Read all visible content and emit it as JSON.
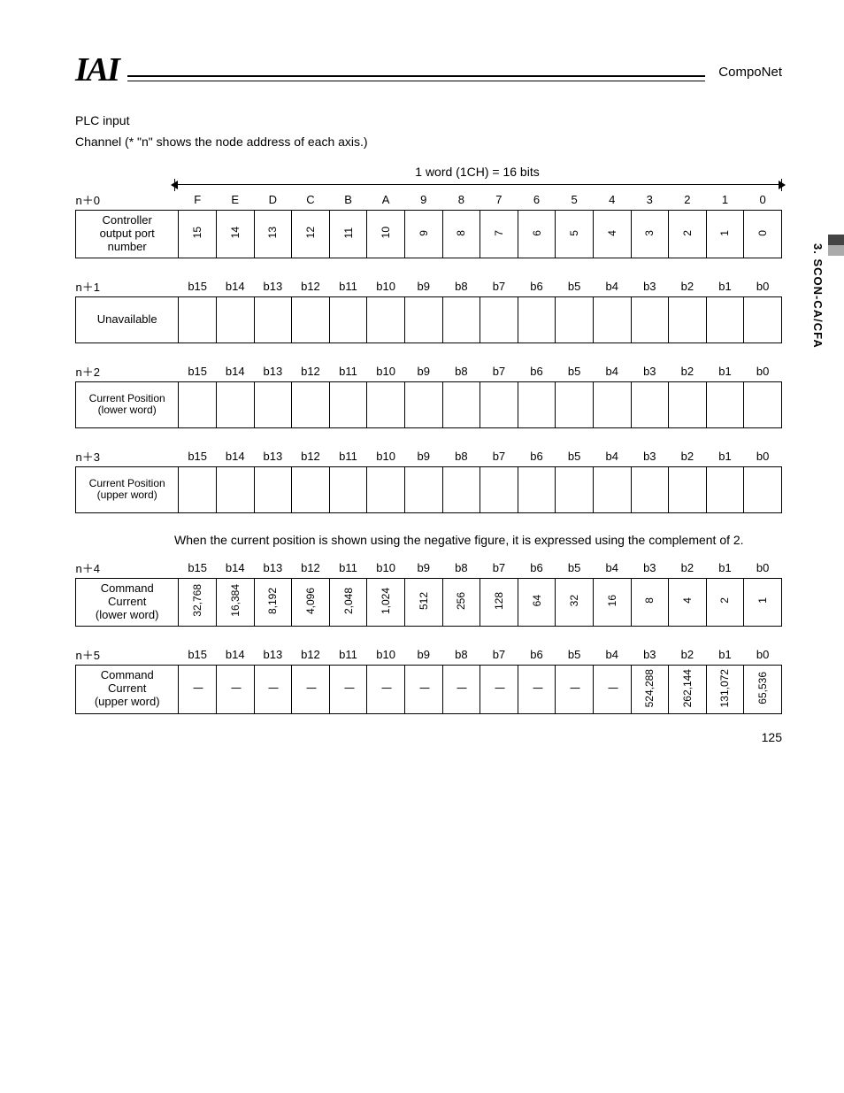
{
  "header": {
    "logo": "IAI",
    "right_title": "CompoNet",
    "side_label": "3. SCON-CA/CFA"
  },
  "intro": {
    "line1": "PLC input",
    "line2": "Channel (* \"n\" shows the node address of each axis.)"
  },
  "wordnote": "1 word (1CH) = 16 bits",
  "rows": [
    {
      "key": "n＋0",
      "name": "Controller\noutput port\nnumber",
      "headers": [
        "F",
        "E",
        "D",
        "C",
        "B",
        "A",
        "9",
        "8",
        "7",
        "6",
        "5",
        "4",
        "3",
        "2",
        "1",
        "0"
      ],
      "values": [
        "15",
        "14",
        "13",
        "12",
        "11",
        "10",
        "9",
        "8",
        "7",
        "6",
        "5",
        "4",
        "3",
        "2",
        "1",
        "0"
      ],
      "vertical": true
    },
    {
      "key": "n＋1",
      "name": "Unavailable",
      "headers": [
        "b15",
        "b14",
        "b13",
        "b12",
        "b11",
        "b10",
        "b9",
        "b8",
        "b7",
        "b6",
        "b5",
        "b4",
        "b3",
        "b2",
        "b1",
        "b0"
      ],
      "values": [
        "",
        "",
        "",
        "",
        "",
        "",
        "",
        "",
        "",
        "",
        "",
        "",
        "",
        "",
        "",
        ""
      ],
      "vertical": false
    },
    {
      "key": "n＋2",
      "name": "Current Position\n(lower word)",
      "headers": [
        "b15",
        "b14",
        "b13",
        "b12",
        "b11",
        "b10",
        "b9",
        "b8",
        "b7",
        "b6",
        "b5",
        "b4",
        "b3",
        "b2",
        "b1",
        "b0"
      ],
      "values": [
        "",
        "",
        "",
        "",
        "",
        "",
        "",
        "",
        "",
        "",
        "",
        "",
        "",
        "",
        "",
        ""
      ],
      "vertical": false,
      "name_fs": "12px"
    },
    {
      "key": "n＋3",
      "name": "Current Position\n(upper word)",
      "headers": [
        "b15",
        "b14",
        "b13",
        "b12",
        "b11",
        "b10",
        "b9",
        "b8",
        "b7",
        "b6",
        "b5",
        "b4",
        "b3",
        "b2",
        "b1",
        "b0"
      ],
      "values": [
        "",
        "",
        "",
        "",
        "",
        "",
        "",
        "",
        "",
        "",
        "",
        "",
        "",
        "",
        "",
        ""
      ],
      "vertical": false,
      "name_fs": "12px",
      "after_note": "When the current position is shown using the negative figure, it is expressed using the complement of 2."
    },
    {
      "key": "n＋4",
      "name": "Command\nCurrent\n(lower word)",
      "headers": [
        "b15",
        "b14",
        "b13",
        "b12",
        "b11",
        "b10",
        "b9",
        "b8",
        "b7",
        "b6",
        "b5",
        "b4",
        "b3",
        "b2",
        "b1",
        "b0"
      ],
      "values": [
        "32,768",
        "16,384",
        "8,192",
        "4,096",
        "2,048",
        "1,024",
        "512",
        "256",
        "128",
        "64",
        "32",
        "16",
        "8",
        "4",
        "2",
        "1"
      ],
      "vertical": true
    },
    {
      "key": "n＋5",
      "name": "Command\nCurrent\n(upper word)",
      "headers": [
        "b15",
        "b14",
        "b13",
        "b12",
        "b11",
        "b10",
        "b9",
        "b8",
        "b7",
        "b6",
        "b5",
        "b4",
        "b3",
        "b2",
        "b1",
        "b0"
      ],
      "values": [
        "|",
        "|",
        "|",
        "|",
        "|",
        "|",
        "|",
        "|",
        "|",
        "|",
        "|",
        "|",
        "524,288",
        "262,144",
        "131,072",
        "65,536"
      ],
      "vertical": true,
      "rotate_pipes": false
    }
  ],
  "pagenum": "125"
}
